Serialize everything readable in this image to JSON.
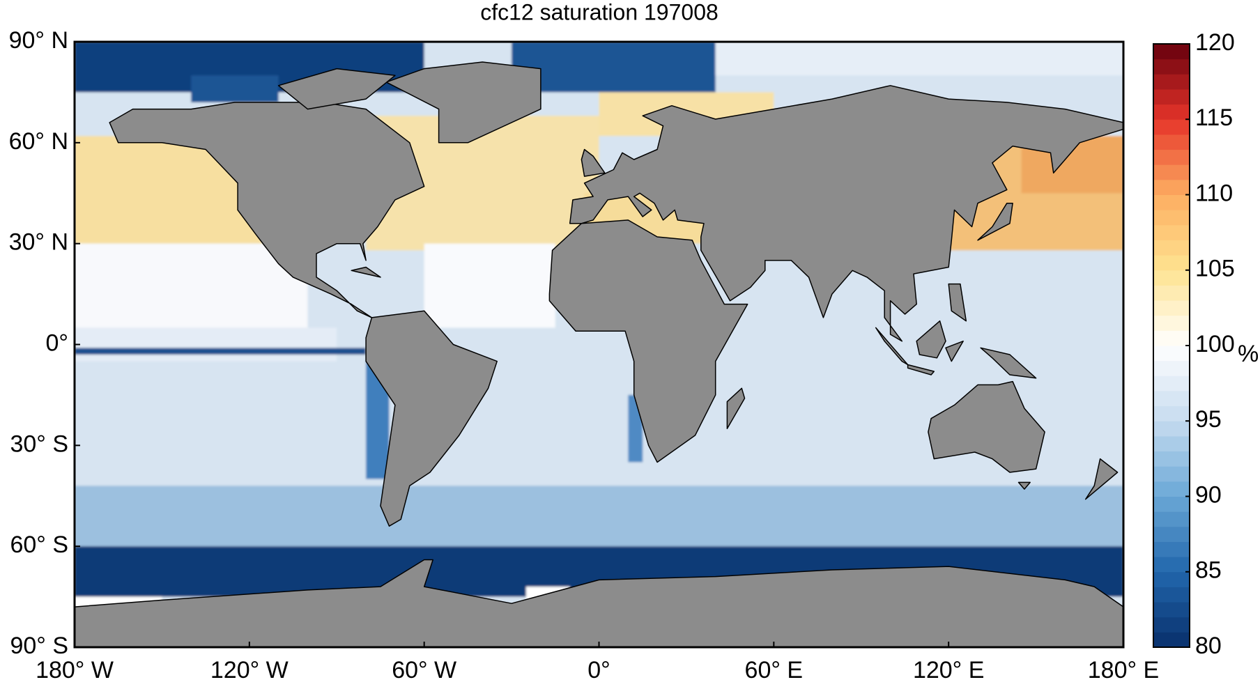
{
  "chart_data": {
    "type": "map",
    "title": "cfc12 saturation 197008",
    "xlim": [
      -180,
      180
    ],
    "xticks": [
      {
        "value": -180,
        "label": "180° W"
      },
      {
        "value": -120,
        "label": "120° W"
      },
      {
        "value": -60,
        "label": "60° W"
      },
      {
        "value": 0,
        "label": "0°"
      },
      {
        "value": 60,
        "label": "60° E"
      },
      {
        "value": 120,
        "label": "120° E"
      },
      {
        "value": 180,
        "label": "180° E"
      }
    ],
    "ylim": [
      -90,
      90
    ],
    "yticks": [
      {
        "value": 90,
        "label": "90° N"
      },
      {
        "value": 60,
        "label": "60° N"
      },
      {
        "value": 30,
        "label": "30° N"
      },
      {
        "value": 0,
        "label": "0°"
      },
      {
        "value": -30,
        "label": "30° S"
      },
      {
        "value": -60,
        "label": "60° S"
      },
      {
        "value": -90,
        "label": "90° S"
      }
    ],
    "colorbar": {
      "lim": [
        80,
        120
      ],
      "ticks": [
        80,
        85,
        90,
        95,
        100,
        105,
        110,
        115,
        120
      ],
      "label": "%",
      "colors": [
        "#08306b",
        "#2166ac",
        "#6aa8d6",
        "#c6dbef",
        "#ffffff",
        "#fee391",
        "#fdae61",
        "#e6342a",
        "#67000d"
      ]
    }
  }
}
